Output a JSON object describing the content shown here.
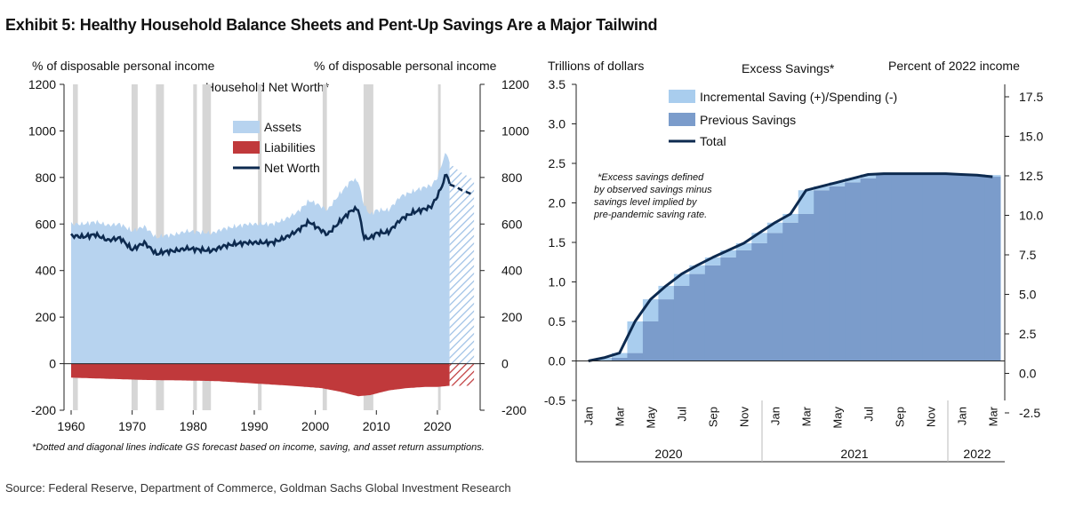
{
  "title": "Exhibit 5: Healthy Household Balance Sheets and Pent-Up Savings Are a Major Tailwind",
  "source": "Source: Federal Reserve, Department of Commerce, Goldman Sachs Global Investment Research",
  "colors": {
    "assets": "#b7d3ef",
    "liabilities": "#c0393b",
    "net_worth": "#0d2a4f",
    "recession": "#d6d6d6",
    "incremental": "#a9cdee",
    "previous": "#7b9ccb",
    "total": "#0d2a4f"
  },
  "chart_data": [
    {
      "type": "area",
      "title": "Household Net Worth*",
      "ylabel_left": "% of disposable personal income",
      "ylabel_right": "% of disposable personal income",
      "ylim": [
        -200,
        1200
      ],
      "xlim": [
        1960,
        2027
      ],
      "yticks": [
        "1200",
        "1000",
        "800",
        "600",
        "400",
        "200",
        "0",
        "-200"
      ],
      "ytick_values": [
        1200,
        1000,
        800,
        600,
        400,
        200,
        0,
        -200
      ],
      "xticks": [
        "1960",
        "1970",
        "1980",
        "1990",
        "2000",
        "2010",
        "2020"
      ],
      "xtick_values": [
        1960,
        1970,
        1980,
        1990,
        2000,
        2010,
        2020
      ],
      "legend": [
        "Assets",
        "Liabilities",
        "Net Worth"
      ],
      "footnote": "*Dotted and diagonal lines indicate GS forecast based on income, saving, and asset return assumptions.",
      "recessions": [
        [
          1960.3,
          1961.1
        ],
        [
          1969.9,
          1970.9
        ],
        [
          1973.9,
          1975.2
        ],
        [
          1980.0,
          1980.6
        ],
        [
          1981.5,
          1982.9
        ],
        [
          1990.6,
          1991.2
        ],
        [
          2001.2,
          2001.9
        ],
        [
          2007.9,
          2009.5
        ],
        [
          2020.1,
          2020.5
        ]
      ],
      "series": [
        {
          "name": "Assets",
          "x": [
            1960,
            1962,
            1964,
            1966,
            1968,
            1970,
            1972,
            1974,
            1975,
            1977,
            1979,
            1981,
            1983,
            1985,
            1987,
            1989,
            1991,
            1993,
            1995,
            1997,
            1999,
            2000,
            2002,
            2004,
            2006,
            2007,
            2008,
            2009,
            2010,
            2012,
            2014,
            2016,
            2018,
            2019,
            2020,
            2021,
            2021.5,
            2022,
            2024,
            2026
          ],
          "values": [
            600,
            600,
            610,
            595,
            600,
            570,
            590,
            540,
            550,
            555,
            570,
            565,
            560,
            580,
            590,
            600,
            600,
            600,
            620,
            650,
            700,
            690,
            660,
            730,
            790,
            785,
            680,
            640,
            660,
            660,
            720,
            740,
            760,
            765,
            800,
            880,
            910,
            860,
            820,
            790
          ]
        },
        {
          "name": "Liabilities",
          "x": [
            1960,
            1966,
            1972,
            1978,
            1984,
            1990,
            1996,
            2001,
            2004,
            2007,
            2009,
            2012,
            2015,
            2018,
            2020,
            2022,
            2026
          ],
          "values": [
            -60,
            -65,
            -70,
            -72,
            -75,
            -85,
            -95,
            -105,
            -120,
            -140,
            -135,
            -115,
            -105,
            -100,
            -100,
            -95,
            -95
          ]
        },
        {
          "name": "Net Worth",
          "x": [
            1960,
            1962,
            1964,
            1966,
            1968,
            1970,
            1972,
            1974,
            1975,
            1977,
            1979,
            1981,
            1983,
            1985,
            1987,
            1989,
            1991,
            1993,
            1995,
            1997,
            1999,
            2000,
            2002,
            2004,
            2006,
            2007,
            2008,
            2009,
            2010,
            2012,
            2014,
            2016,
            2018,
            2019,
            2020,
            2021,
            2021.5,
            2022
          ],
          "values": [
            550,
            545,
            555,
            530,
            540,
            490,
            520,
            470,
            480,
            485,
            495,
            490,
            485,
            505,
            515,
            520,
            520,
            520,
            540,
            570,
            610,
            590,
            555,
            610,
            660,
            665,
            540,
            540,
            560,
            565,
            620,
            650,
            665,
            675,
            720,
            780,
            820,
            770
          ]
        },
        {
          "name": "Net Worth forecast",
          "x": [
            2022,
            2023,
            2024,
            2025,
            2026
          ],
          "values": [
            770,
            760,
            745,
            735,
            725
          ]
        }
      ]
    },
    {
      "type": "bar",
      "title": "Excess Savings*",
      "ylabel_left": "Trillions of dollars",
      "ylabel_right": "Percent of 2022 income",
      "ylim": [
        -0.5,
        3.5
      ],
      "yticks_left": [
        "3.5",
        "3.0",
        "2.5",
        "2.0",
        "1.5",
        "1.0",
        "0.5",
        "0.0",
        "-0.5"
      ],
      "ytick_values_left": [
        3.5,
        3.0,
        2.5,
        2.0,
        1.5,
        1.0,
        0.5,
        0.0,
        -0.5
      ],
      "yticks_right": [
        "17.5",
        "15.0",
        "12.5",
        "10.0",
        "7.5",
        "5.0",
        "2.5",
        "0.0",
        "-2.5"
      ],
      "ytick_values_right": [
        17.5,
        15.0,
        12.5,
        10.0,
        7.5,
        5.0,
        2.5,
        0.0,
        -2.5
      ],
      "legend": [
        "Incremental Saving (+)/Spending (-)",
        "Previous Savings",
        "Total"
      ],
      "annotation": [
        "*Excess savings defined",
        "by observed savings minus",
        "savings level implied by",
        "pre-pandemic saving rate."
      ],
      "month_labels": [
        "Jan",
        "Mar",
        "May",
        "Jul",
        "Sep",
        "Nov",
        "Jan",
        "Mar",
        "May",
        "Jul",
        "Sep",
        "Nov",
        "Jan",
        "Mar"
      ],
      "years": [
        "2020",
        "2021",
        "2022"
      ],
      "categories": [
        "Jan-20",
        "Feb-20",
        "Mar-20",
        "Apr-20",
        "May-20",
        "Jun-20",
        "Jul-20",
        "Aug-20",
        "Sep-20",
        "Oct-20",
        "Nov-20",
        "Dec-20",
        "Jan-21",
        "Feb-21",
        "Mar-21",
        "Apr-21",
        "May-21",
        "Jun-21",
        "Jul-21",
        "Aug-21",
        "Sep-21",
        "Oct-21",
        "Nov-21",
        "Dec-21",
        "Jan-22",
        "Feb-22",
        "Mar-22"
      ],
      "series": [
        {
          "name": "Previous Savings",
          "values": [
            0.0,
            0.0,
            0.04,
            0.1,
            0.5,
            0.78,
            0.95,
            1.1,
            1.21,
            1.31,
            1.4,
            1.49,
            1.62,
            1.75,
            1.86,
            2.16,
            2.21,
            2.26,
            2.31,
            2.36,
            2.37,
            2.37,
            2.36,
            2.37,
            2.37,
            2.36,
            2.35
          ]
        },
        {
          "name": "Incremental Saving (+)/Spending (-)",
          "values": [
            0.0,
            0.04,
            0.06,
            0.4,
            0.28,
            0.17,
            0.15,
            0.11,
            0.1,
            0.09,
            0.09,
            0.13,
            0.13,
            0.11,
            0.3,
            0.05,
            0.05,
            0.05,
            0.05,
            0.01,
            0.0,
            0.0,
            0.01,
            0.0,
            -0.01,
            -0.01,
            -0.02
          ]
        },
        {
          "name": "Total",
          "values": [
            0.0,
            0.04,
            0.1,
            0.5,
            0.78,
            0.95,
            1.1,
            1.21,
            1.31,
            1.4,
            1.49,
            1.62,
            1.75,
            1.86,
            2.16,
            2.21,
            2.26,
            2.31,
            2.36,
            2.37,
            2.37,
            2.37,
            2.37,
            2.37,
            2.36,
            2.35,
            2.33
          ]
        }
      ]
    }
  ]
}
